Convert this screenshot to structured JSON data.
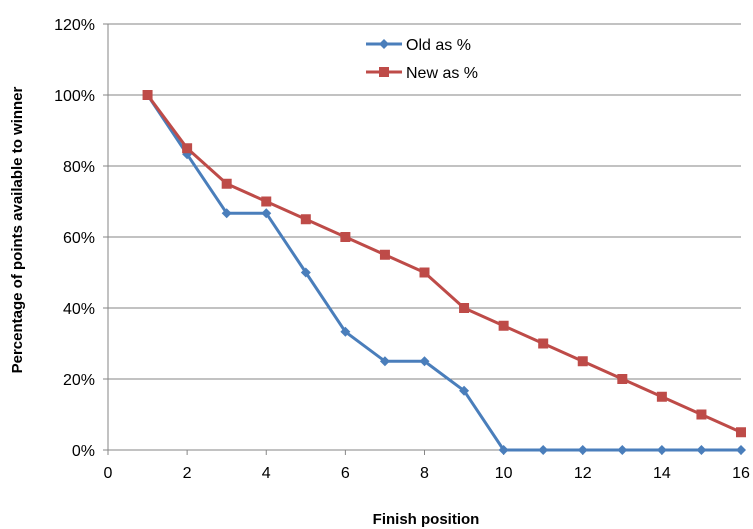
{
  "chart_data": {
    "type": "line",
    "title": "",
    "xlabel": "Finish position",
    "ylabel": "Percentage of points available to winner",
    "xlim": [
      0,
      16
    ],
    "ylim": [
      0,
      120
    ],
    "x_ticks": [
      0,
      2,
      4,
      6,
      8,
      10,
      12,
      14,
      16
    ],
    "x_tick_labels": [
      "0",
      "2",
      "4",
      "6",
      "8",
      "10",
      "12",
      "14",
      "16"
    ],
    "y_ticks": [
      0,
      20,
      40,
      60,
      80,
      100,
      120
    ],
    "y_tick_labels": [
      "0%",
      "20%",
      "40%",
      "60%",
      "80%",
      "100%",
      "120%"
    ],
    "grid": "horizontal",
    "legend_position": "top-center",
    "series": [
      {
        "name": "Old as %",
        "color": "#4a7ebb",
        "marker": "diamond",
        "x": [
          1,
          2,
          3,
          4,
          5,
          6,
          7,
          8,
          9,
          10,
          11,
          12,
          13,
          14,
          15,
          16
        ],
        "y": [
          100,
          83.3,
          66.7,
          66.7,
          50,
          33.3,
          25,
          25,
          16.7,
          0,
          0,
          0,
          0,
          0,
          0,
          0
        ]
      },
      {
        "name": "New as %",
        "color": "#be4b48",
        "marker": "square",
        "x": [
          1,
          2,
          3,
          4,
          5,
          6,
          7,
          8,
          9,
          10,
          11,
          12,
          13,
          14,
          15,
          16
        ],
        "y": [
          100,
          85,
          75,
          70,
          65,
          60,
          55,
          50,
          40,
          35,
          30,
          25,
          20,
          15,
          10,
          5
        ]
      }
    ]
  }
}
